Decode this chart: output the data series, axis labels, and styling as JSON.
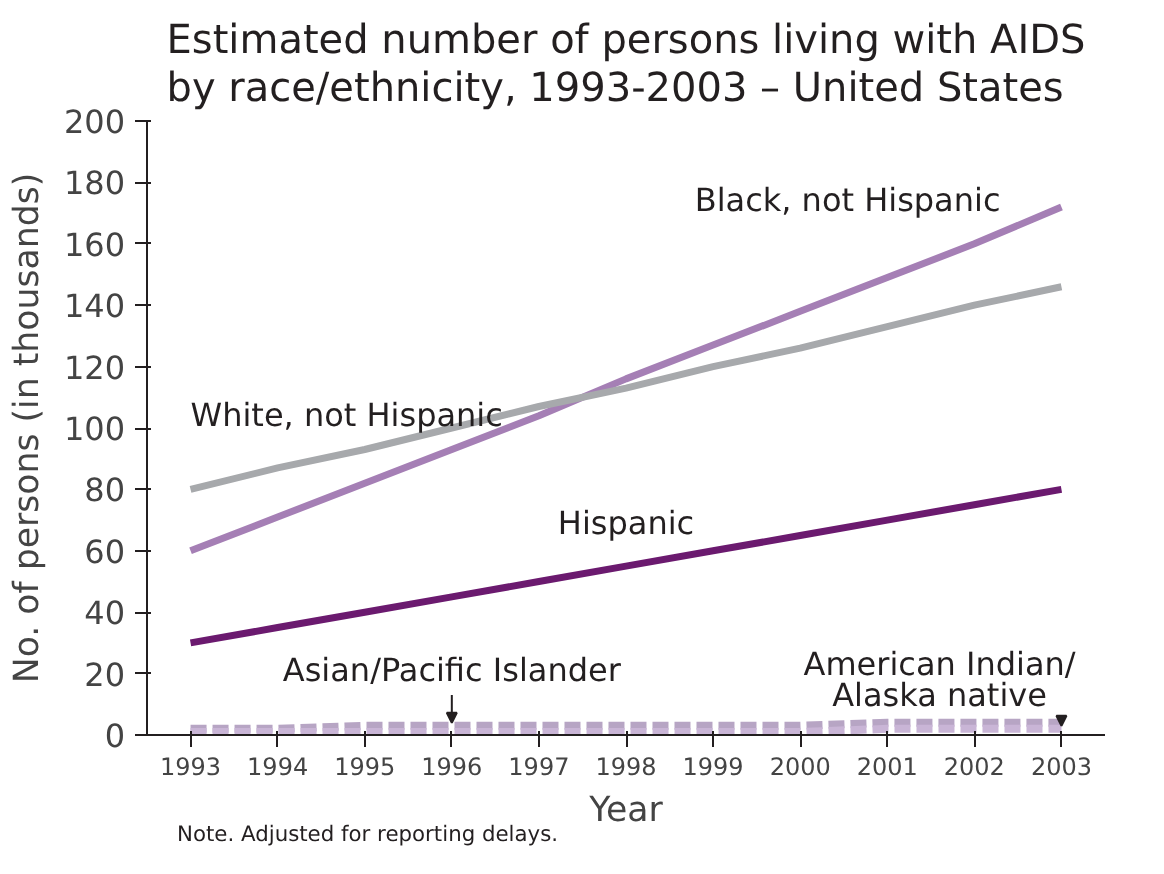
{
  "chart_data": {
    "type": "line",
    "title": "Estimated number of persons living with AIDS\nby race/ethnicity, 1993-2003 – United States",
    "xlabel": "Year",
    "ylabel": "No. of persons (in thousands)",
    "categories": [
      "1993",
      "1994",
      "1995",
      "1996",
      "1997",
      "1998",
      "1999",
      "2000",
      "2001",
      "2002",
      "2003"
    ],
    "ylim": [
      0,
      200
    ],
    "yticks": [
      0,
      20,
      40,
      60,
      80,
      100,
      120,
      140,
      160,
      180,
      200
    ],
    "grid": false,
    "series": [
      {
        "name": "Black, not Hispanic",
        "color": "#a57fb5",
        "line_style": "solid",
        "values": [
          60,
          71,
          82,
          93,
          104,
          116,
          127,
          138,
          149,
          160,
          172
        ]
      },
      {
        "name": "White, not Hispanic",
        "color": "#a7a9ac",
        "line_style": "solid",
        "values": [
          80,
          87,
          93,
          100,
          107,
          113,
          120,
          126,
          133,
          140,
          146
        ]
      },
      {
        "name": "Hispanic",
        "color": "#6b1a6f",
        "line_style": "solid",
        "values": [
          30,
          35,
          40,
          45,
          50,
          55,
          60,
          65,
          70,
          75,
          80
        ]
      },
      {
        "name": "Asian/Pacific Islander",
        "color": "#b7a5c4",
        "line_style": "dashed",
        "values": [
          2,
          2,
          3,
          3,
          3,
          3,
          3,
          3,
          4,
          4,
          4
        ]
      },
      {
        "name": "American Indian/\nAlaska native",
        "color": "#c9b5d6",
        "line_style": "dashed",
        "values": [
          1,
          1,
          1,
          1,
          1,
          1,
          1,
          1,
          2,
          2,
          2
        ]
      }
    ],
    "annotations": [
      "Note. Adjusted for reporting delays."
    ]
  }
}
